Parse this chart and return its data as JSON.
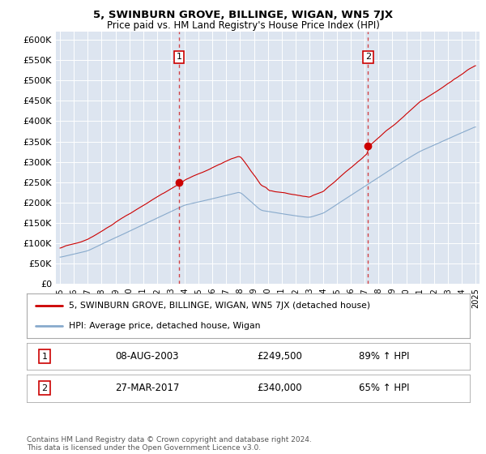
{
  "title": "5, SWINBURN GROVE, BILLINGE, WIGAN, WN5 7JX",
  "subtitle": "Price paid vs. HM Land Registry's House Price Index (HPI)",
  "ylim": [
    0,
    620000
  ],
  "yticks": [
    0,
    50000,
    100000,
    150000,
    200000,
    250000,
    300000,
    350000,
    400000,
    450000,
    500000,
    550000,
    600000
  ],
  "ytick_labels": [
    "£0",
    "£50K",
    "£100K",
    "£150K",
    "£200K",
    "£250K",
    "£300K",
    "£350K",
    "£400K",
    "£450K",
    "£500K",
    "£550K",
    "£600K"
  ],
  "background_color": "#dde5f0",
  "grid_color": "white",
  "red_color": "#cc0000",
  "blue_color": "#88aacc",
  "transaction1_year": 2003.6,
  "transaction1_price": 249500,
  "transaction2_year": 2017.23,
  "transaction2_price": 340000,
  "legend_line1": "5, SWINBURN GROVE, BILLINGE, WIGAN, WN5 7JX (detached house)",
  "legend_line2": "HPI: Average price, detached house, Wigan",
  "footnote": "Contains HM Land Registry data © Crown copyright and database right 2024.\nThis data is licensed under the Open Government Licence v3.0.",
  "table_row1": [
    "1",
    "08-AUG-2003",
    "£249,500",
    "89% ↑ HPI"
  ],
  "table_row2": [
    "2",
    "27-MAR-2017",
    "£340,000",
    "65% ↑ HPI"
  ]
}
